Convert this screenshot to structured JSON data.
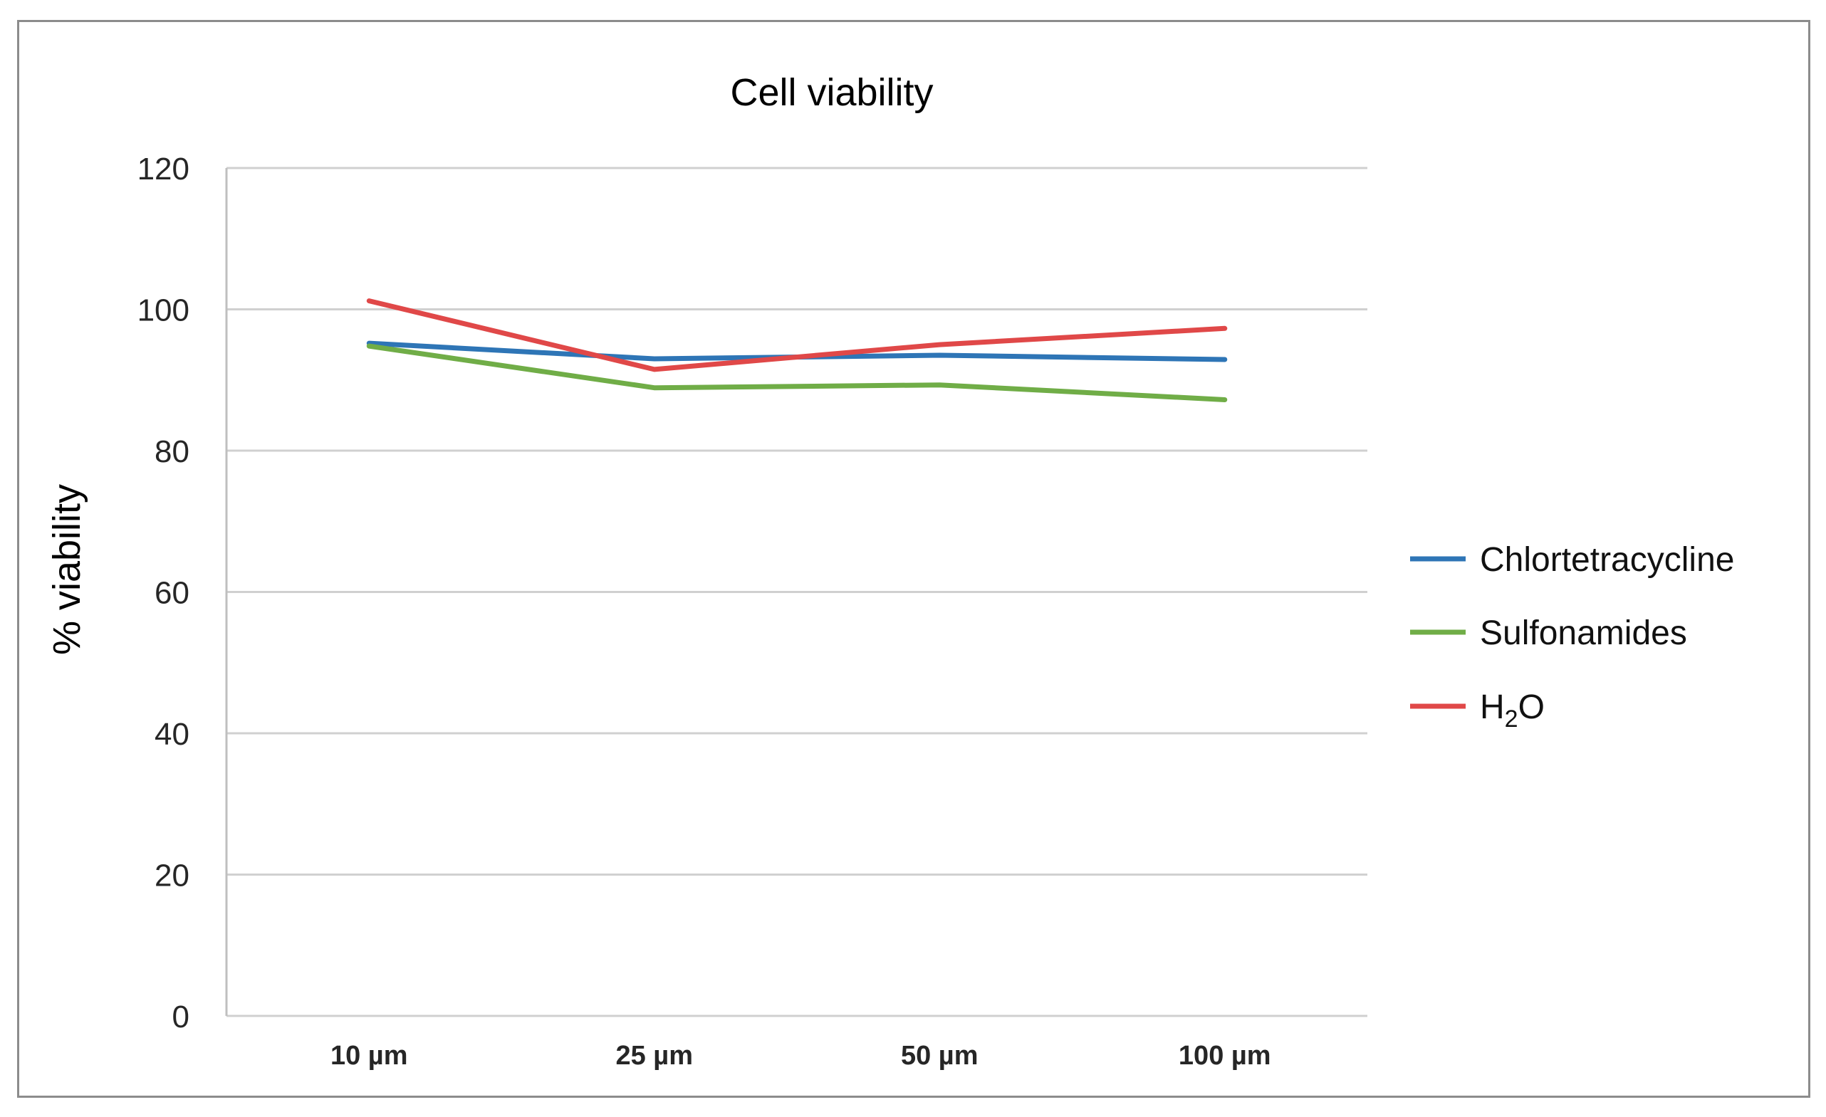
{
  "chart_data": {
    "type": "line",
    "title": "Cell viability",
    "xlabel": "",
    "ylabel": "% viability",
    "categories": [
      "10 µm",
      "25 µm",
      "50 µm",
      "100 µm"
    ],
    "ylim": [
      0,
      120
    ],
    "yticks": [
      0,
      20,
      40,
      60,
      80,
      100,
      120
    ],
    "grid": true,
    "legend_position": "right",
    "series": [
      {
        "name": "Chlortetracycline",
        "color": "#2e75b6",
        "values": [
          95.2,
          93.0,
          93.5,
          92.9
        ]
      },
      {
        "name": "Sulfonamides",
        "color": "#70ad47",
        "values": [
          94.8,
          88.9,
          89.3,
          87.2
        ]
      },
      {
        "name": "H2O",
        "name_base": "H",
        "name_sub": "2",
        "name_tail": "O",
        "color": "#e04848",
        "values": [
          101.2,
          91.5,
          95.0,
          97.3
        ]
      }
    ]
  }
}
